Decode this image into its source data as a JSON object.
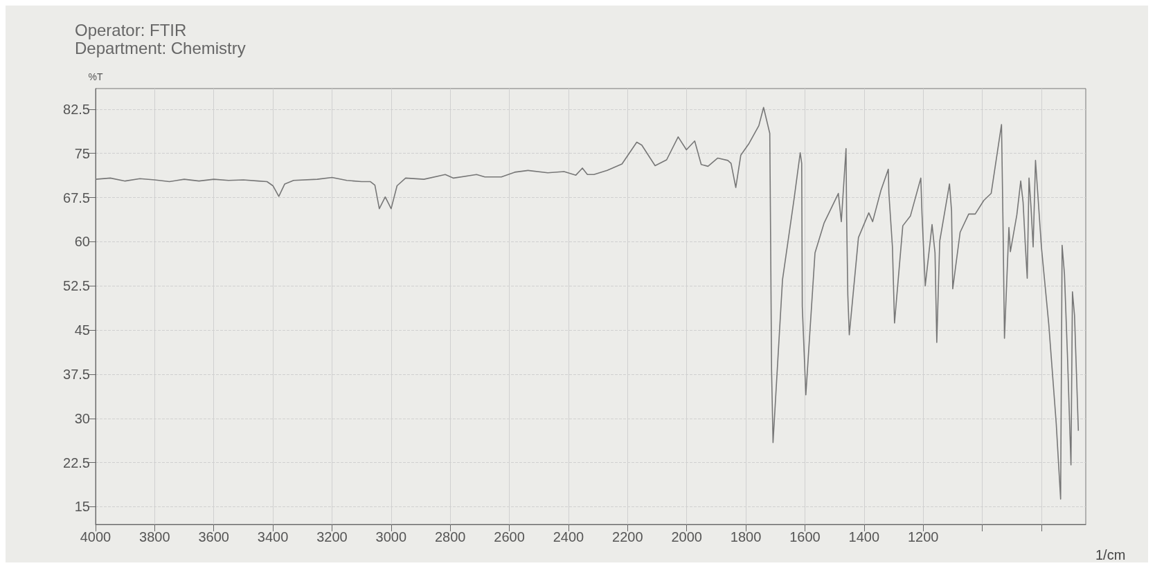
{
  "chart_data": {
    "type": "line",
    "title": "Operator: FTIR",
    "subtitle": "Department: Chemistry",
    "xlabel": "1/cm",
    "ylabel": "%T",
    "xlim": [
      4000,
      650
    ],
    "ylim": [
      12,
      86
    ],
    "xticks": [
      4000,
      3800,
      3600,
      3400,
      3200,
      3000,
      2800,
      2600,
      2400,
      2200,
      2000,
      1800,
      1600,
      1400,
      1200,
      {
        "value": 1000,
        "label": null
      },
      {
        "value": 800,
        "label": null
      }
    ],
    "yticks": [
      15,
      22.5,
      30,
      37.5,
      45,
      52.5,
      60,
      67.5,
      75,
      82.5
    ],
    "grid": true,
    "marker": "none",
    "line_style": "solid",
    "series": [
      {
        "color": "#777777",
        "x": [
          4000,
          3950,
          3900,
          3850,
          3800,
          3750,
          3700,
          3650,
          3600,
          3550,
          3500,
          3450,
          3420,
          3400,
          3380,
          3360,
          3330,
          3250,
          3200,
          3150,
          3100,
          3070,
          3055,
          3040,
          3020,
          3000,
          2980,
          2951,
          2889,
          2817,
          2789,
          2711,
          2683,
          2627,
          2582,
          2537,
          2470,
          2415,
          2375,
          2353,
          2336,
          2314,
          2269,
          2219,
          2169,
          2152,
          2107,
          2068,
          2029,
          2001,
          1973,
          1951,
          1928,
          1895,
          1861,
          1850,
          1834,
          1817,
          1789,
          1756,
          1740,
          1719,
          1716,
          1713,
          1708,
          1676,
          1637,
          1616,
          1611,
          1609,
          1597,
          1566,
          1535,
          1487,
          1477,
          1461,
          1459,
          1455,
          1450,
          1419,
          1384,
          1371,
          1343,
          1318,
          1316,
          1304,
          1297,
          1269,
          1243,
          1208,
          1204,
          1193,
          1170,
          1160,
          1154,
          1144,
          1111,
          1104,
          1100,
          1075,
          1046,
          1024,
          995,
          970,
          935,
          930,
          925,
          910,
          905,
          883,
          870,
          862,
          855,
          848,
          842,
          835,
          828,
          820,
          800,
          775,
          750,
          735,
          730,
          722,
          712,
          700,
          695,
          688,
          675
        ],
        "values": [
          70.6,
          70.8,
          70.3,
          70.7,
          70.5,
          70.2,
          70.6,
          70.3,
          70.6,
          70.4,
          70.5,
          70.3,
          70.2,
          69.5,
          67.7,
          69.8,
          70.4,
          70.6,
          70.9,
          70.4,
          70.2,
          70.2,
          69.6,
          65.6,
          67.6,
          65.6,
          69.5,
          70.8,
          70.6,
          71.4,
          70.8,
          71.4,
          71.0,
          71.0,
          71.8,
          72.1,
          71.7,
          71.9,
          71.3,
          72.5,
          71.4,
          71.4,
          72.1,
          73.2,
          76.9,
          76.4,
          72.9,
          73.9,
          77.8,
          75.6,
          77.1,
          73.1,
          72.8,
          74.2,
          73.8,
          73.3,
          69.2,
          74.7,
          76.7,
          79.7,
          82.8,
          78.4,
          59.6,
          38.3,
          25.9,
          53.5,
          67.2,
          75.1,
          73.3,
          49,
          34.0,
          58.1,
          63.2,
          68.2,
          63.4,
          75.8,
          64.2,
          51,
          44.2,
          60.7,
          64.9,
          63.4,
          68.7,
          72.3,
          68.2,
          59.1,
          46.2,
          62.7,
          64.4,
          70.8,
          64.7,
          52.5,
          62.9,
          58.1,
          42.9,
          60.1,
          69.8,
          65.2,
          52,
          61.6,
          64.7,
          64.7,
          67,
          68.2,
          79.9,
          63.2,
          43.6,
          62.4,
          58.3,
          64.6,
          70.3,
          66.7,
          59.9,
          53.8,
          70.8,
          65.7,
          59.1,
          73.8,
          59.1,
          45.9,
          29.2,
          16.3,
          59.4,
          54.5,
          40.8,
          22.1,
          51.5,
          47.5,
          27.9
        ]
      }
    ]
  }
}
